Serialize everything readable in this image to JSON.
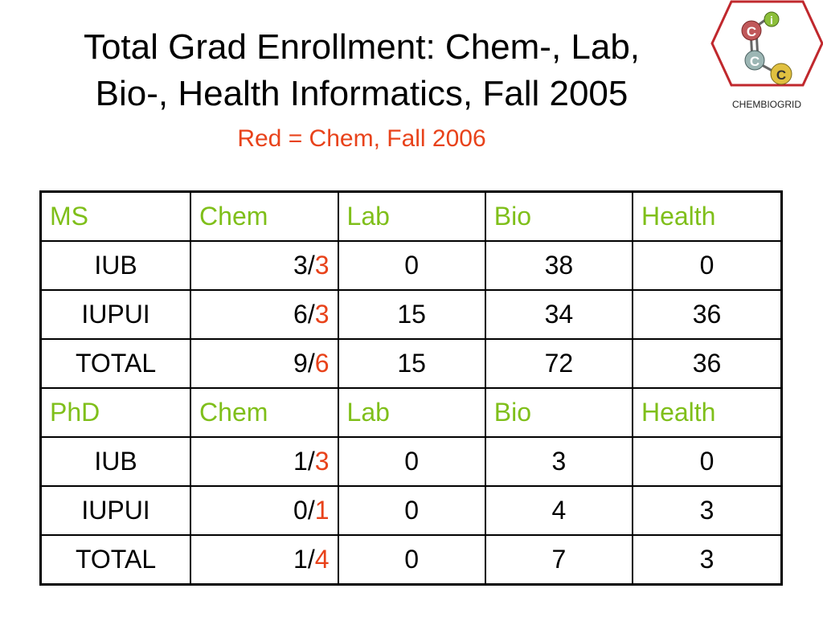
{
  "title_line1": "Total Grad Enrollment: Chem-, Lab,",
  "title_line2": "Bio-, Health Informatics, Fall 2005",
  "subtitle": "Red = Chem, Fall 2006",
  "logo": {
    "text": "CHEMBIOGRID",
    "letters": [
      "C",
      "i",
      "C",
      "C"
    ],
    "icon": "molecule-logo"
  },
  "colors": {
    "header": "#7fbf1a",
    "highlight": "#e8421a",
    "logo_red": "#c0282d"
  },
  "ms": {
    "headers": [
      "MS",
      "Chem",
      "Lab",
      "Bio",
      "Health"
    ],
    "rows": [
      {
        "label": "IUB",
        "chem_2005": "3",
        "chem_2006": "3",
        "lab": "0",
        "bio": "38",
        "health": "0"
      },
      {
        "label": "IUPUI",
        "chem_2005": "6",
        "chem_2006": "3",
        "lab": "15",
        "bio": "34",
        "health": "36"
      },
      {
        "label": "TOTAL",
        "chem_2005": "9",
        "chem_2006": "6",
        "lab": "15",
        "bio": "72",
        "health": "36"
      }
    ]
  },
  "phd": {
    "headers": [
      "PhD",
      "Chem",
      "Lab",
      "Bio",
      "Health"
    ],
    "rows": [
      {
        "label": "IUB",
        "chem_2005": "1",
        "chem_2006": "3",
        "lab": "0",
        "bio": "3",
        "health": "0"
      },
      {
        "label": "IUPUI",
        "chem_2005": "0",
        "chem_2006": "1",
        "lab": "0",
        "bio": "4",
        "health": "3"
      },
      {
        "label": "TOTAL",
        "chem_2005": "1",
        "chem_2006": "4",
        "lab": "0",
        "bio": "7",
        "health": "3"
      }
    ]
  }
}
